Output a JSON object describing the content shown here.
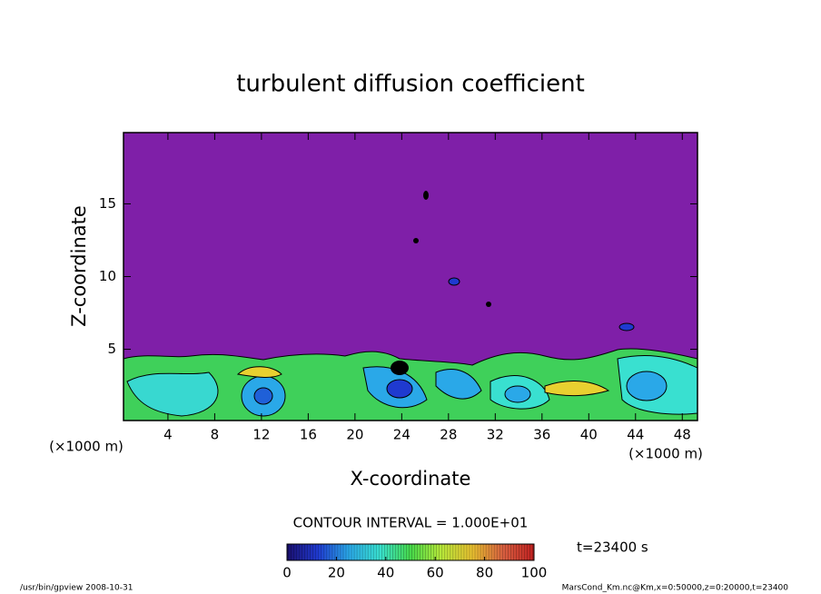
{
  "chart_data": {
    "type": "contour",
    "title": "turbulent diffusion coefficient",
    "xlabel": "X-coordinate",
    "ylabel": "Z-coordinate",
    "x_unit": "(×1000 m)",
    "xlim": [
      0.2,
      49.3
    ],
    "ylim": [
      0.1,
      19.9
    ],
    "xticks": [
      4,
      8,
      12,
      16,
      20,
      24,
      28,
      32,
      36,
      40,
      44,
      48
    ],
    "yticks": [
      5,
      10,
      15
    ],
    "field_color": "#7f1fa8",
    "colormap": [
      "#1a0f6e",
      "#1f3ad0",
      "#2aa8e8",
      "#39e0d0",
      "#46d84a",
      "#b8e83a",
      "#e8c030",
      "#d86040",
      "#c02020"
    ],
    "clim": [
      0,
      100
    ],
    "cticks": [
      0,
      20,
      40,
      60,
      80,
      100
    ],
    "contour_interval": "CONTOUR INTERVAL = 1.000E+01",
    "time_label": "t=23400 s",
    "footer_left": "/usr/bin/gpview  2008-10-31",
    "footer_right": "MarsCond_Km.nc@Km,x=0:50000,z=0:20000,t=23400"
  }
}
